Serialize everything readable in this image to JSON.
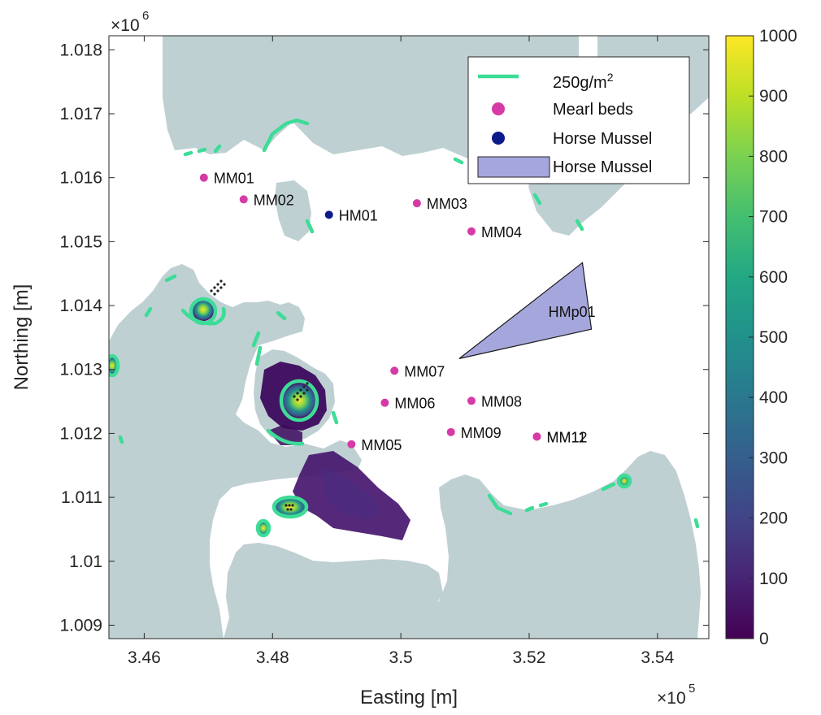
{
  "x_axis": {
    "label": "Easting [m]",
    "exponent": "×10",
    "exponent_power": "5",
    "ticks": [
      "3.46",
      "3.48",
      "3.5",
      "3.52",
      "3.54"
    ],
    "range": [
      3.4545,
      3.548
    ]
  },
  "y_axis": {
    "label": "Northing [m]",
    "exponent": "×10",
    "exponent_power": "6",
    "ticks": [
      "1.009",
      "1.01",
      "1.011",
      "1.012",
      "1.013",
      "1.014",
      "1.015",
      "1.016",
      "1.017",
      "1.018"
    ],
    "range": [
      1.00879,
      1.01822
    ]
  },
  "colorbar": {
    "ticks": [
      "0",
      "100",
      "200",
      "300",
      "400",
      "500",
      "600",
      "700",
      "800",
      "900",
      "1000"
    ],
    "range": [
      0,
      1000
    ],
    "colormap": "viridis"
  },
  "legend": {
    "placement": "top-right",
    "items": [
      {
        "label": "250g/m",
        "superscript": "2",
        "color": "#3ddc97",
        "symbol": "line"
      },
      {
        "label": "Mearl beds",
        "color": "#d63aa6",
        "symbol": "dot"
      },
      {
        "label": "Horse Mussel",
        "color": "#0d1a8a",
        "symbol": "dot"
      },
      {
        "label": "Horse Mussel",
        "color": "#a5a6dc",
        "symbol": "patch"
      }
    ]
  },
  "colors": {
    "land": "#bfd0d3",
    "contour": "#3ddc97",
    "mearl": "#d63aa6",
    "horse_mussel": "#0d1a8a",
    "horse_mussel_area": "#a5a6dc",
    "deposit_low": "#440154",
    "deposit_high": "#fde725"
  },
  "sites": [
    {
      "label": "MM01",
      "type": "mearl",
      "x": 3.4693,
      "y": 1.016
    },
    {
      "label": "MM02",
      "type": "mearl",
      "x": 3.4755,
      "y": 1.01566
    },
    {
      "label": "HM01",
      "type": "horse_mussel",
      "x": 3.4888,
      "y": 1.01542
    },
    {
      "label": "MM03",
      "type": "mearl",
      "x": 3.5025,
      "y": 1.0156
    },
    {
      "label": "MM04",
      "type": "mearl",
      "x": 3.511,
      "y": 1.01516
    },
    {
      "label": "MM07",
      "type": "mearl",
      "x": 3.499,
      "y": 1.01298
    },
    {
      "label": "MM06",
      "type": "mearl",
      "x": 3.4975,
      "y": 1.01248
    },
    {
      "label": "MM08",
      "type": "mearl",
      "x": 3.511,
      "y": 1.01251
    },
    {
      "label": "MM09",
      "type": "mearl",
      "x": 3.5078,
      "y": 1.01202
    },
    {
      "label": "MM11",
      "type": "mearl",
      "x": 3.5212,
      "y": 1.01195
    },
    {
      "label": "MM12",
      "type": "mearl",
      "x": 3.5212,
      "y": 1.01195
    },
    {
      "label": "MM05",
      "type": "mearl",
      "x": 3.4923,
      "y": 1.01183
    }
  ],
  "horse_mussel_area": {
    "label": "HMp01",
    "vertices": [
      [
        3.5091,
        1.01317
      ],
      [
        3.5283,
        1.01467
      ],
      [
        3.5297,
        1.01363
      ]
    ]
  }
}
